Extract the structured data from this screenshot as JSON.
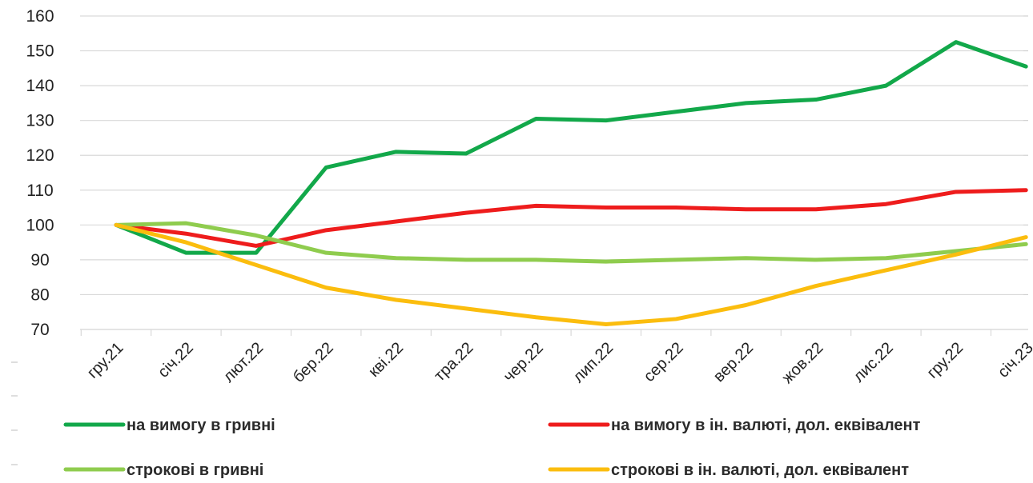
{
  "chart_data": {
    "type": "line",
    "categories": [
      "гру.21",
      "січ.22",
      "лют.22",
      "бер.22",
      "кві.22",
      "тра.22",
      "чер.22",
      "лип.22",
      "сер.22",
      "вер.22",
      "жов.22",
      "лис.22",
      "гру.22",
      "січ.23"
    ],
    "ylim": [
      70,
      160
    ],
    "y_ticks": [
      70,
      80,
      90,
      100,
      110,
      120,
      130,
      140,
      150,
      160
    ],
    "grid": true,
    "legend_position": "bottom",
    "series": [
      {
        "name": "на вимогу в гривні",
        "color": "#12a84a",
        "values": [
          100,
          92,
          92,
          116.5,
          121,
          120.5,
          130.5,
          130,
          132.5,
          135,
          136,
          140,
          152.5,
          145.5
        ]
      },
      {
        "name": "на вимогу в ін. валюті, дол. еквівалент",
        "color": "#ee1c1c",
        "values": [
          100,
          97.5,
          94,
          98.5,
          101,
          103.5,
          105.5,
          105,
          105,
          104.5,
          104.5,
          106,
          109.5,
          110
        ]
      },
      {
        "name": "строкові в гривні",
        "color": "#8fcc4e",
        "values": [
          100,
          100.5,
          97,
          92,
          90.5,
          90,
          90,
          89.5,
          90,
          90.5,
          90,
          90.5,
          92.5,
          94.5
        ]
      },
      {
        "name": "строкові в ін. валюті, дол. еквівалент",
        "color": "#fbbd0e",
        "values": [
          100,
          95,
          88.5,
          82,
          78.5,
          76,
          73.5,
          71.5,
          73,
          77,
          82.5,
          87,
          91.5,
          96.5
        ]
      }
    ]
  }
}
